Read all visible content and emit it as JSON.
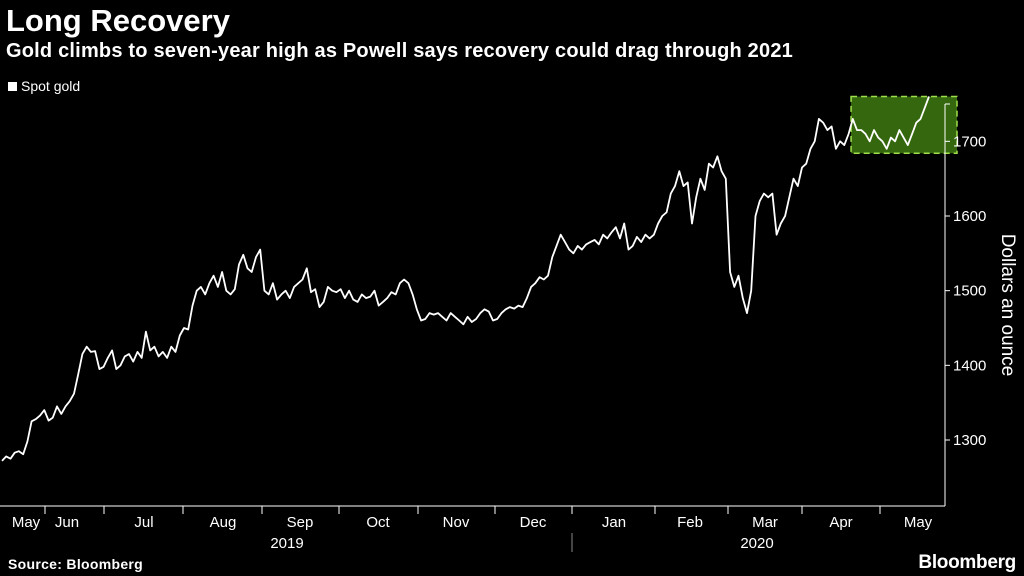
{
  "header": {
    "title": "Long Recovery",
    "subtitle": "Gold climbs to seven-year high as Powell says recovery could drag through 2021"
  },
  "footer": {
    "source": "Source: Bloomberg",
    "brand": "Bloomberg"
  },
  "colors": {
    "background": "#000000",
    "line": "#ffffff",
    "highlight_fill": "#3e7a10",
    "highlight_border": "#9ee04a"
  },
  "chart_data": {
    "type": "line",
    "title": "Long Recovery",
    "subtitle": "Gold climbs to seven-year high as Powell says recovery could drag through 2021",
    "ylabel": "Dollars an ounce",
    "xlabel": "",
    "ylim": [
      1225,
      1750
    ],
    "yticks": [
      1300,
      1400,
      1500,
      1600,
      1700
    ],
    "legend": [
      "Spot gold"
    ],
    "series": [
      {
        "name": "Spot gold",
        "values": [
          1272,
          1278,
          1275,
          1283,
          1285,
          1281,
          1298,
          1325,
          1328,
          1333,
          1340,
          1326,
          1330,
          1345,
          1335,
          1345,
          1352,
          1362,
          1388,
          1415,
          1425,
          1418,
          1419,
          1395,
          1398,
          1410,
          1420,
          1395,
          1400,
          1412,
          1415,
          1405,
          1418,
          1410,
          1445,
          1420,
          1425,
          1412,
          1418,
          1410,
          1425,
          1418,
          1440,
          1450,
          1448,
          1480,
          1500,
          1505,
          1495,
          1510,
          1520,
          1505,
          1525,
          1500,
          1495,
          1502,
          1535,
          1548,
          1530,
          1525,
          1545,
          1555,
          1500,
          1495,
          1510,
          1488,
          1495,
          1500,
          1490,
          1505,
          1510,
          1515,
          1530,
          1498,
          1502,
          1478,
          1485,
          1505,
          1500,
          1498,
          1502,
          1490,
          1500,
          1488,
          1485,
          1495,
          1490,
          1492,
          1500,
          1480,
          1485,
          1490,
          1498,
          1495,
          1510,
          1515,
          1510,
          1495,
          1475,
          1460,
          1462,
          1470,
          1468,
          1470,
          1465,
          1460,
          1470,
          1465,
          1460,
          1455,
          1465,
          1458,
          1462,
          1470,
          1475,
          1472,
          1460,
          1462,
          1470,
          1475,
          1478,
          1476,
          1480,
          1478,
          1490,
          1505,
          1510,
          1518,
          1515,
          1520,
          1545,
          1560,
          1575,
          1565,
          1555,
          1550,
          1560,
          1555,
          1562,
          1565,
          1568,
          1562,
          1575,
          1570,
          1578,
          1585,
          1570,
          1590,
          1555,
          1560,
          1572,
          1565,
          1575,
          1570,
          1575,
          1590,
          1600,
          1605,
          1630,
          1640,
          1660,
          1640,
          1645,
          1590,
          1625,
          1650,
          1635,
          1670,
          1665,
          1680,
          1660,
          1650,
          1525,
          1505,
          1520,
          1490,
          1470,
          1500,
          1600,
          1620,
          1630,
          1625,
          1630,
          1575,
          1590,
          1600,
          1625,
          1650,
          1640,
          1665,
          1670,
          1690,
          1700,
          1730,
          1725,
          1715,
          1720,
          1690,
          1700,
          1695,
          1710,
          1730,
          1715,
          1715,
          1710,
          1700,
          1715,
          1705,
          1700,
          1690,
          1705,
          1700,
          1715,
          1705,
          1695,
          1710,
          1725,
          1730,
          1745,
          1760
        ]
      }
    ],
    "x_month_labels": [
      "May",
      "Jun",
      "Jul",
      "Aug",
      "Sep",
      "Oct",
      "Nov",
      "Dec",
      "Jan",
      "Feb",
      "Mar",
      "Apr",
      "May"
    ],
    "x_year_labels": [
      "2019",
      "2020"
    ],
    "highlight": {
      "x_start_fraction": 0.9375,
      "x_end_fraction": 1.0,
      "y_range": [
        1684,
        1760
      ]
    }
  }
}
